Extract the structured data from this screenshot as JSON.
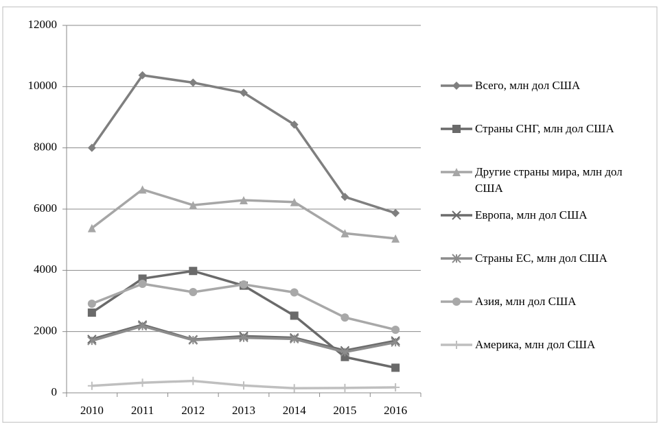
{
  "chart_data": {
    "type": "line",
    "categories": [
      "2010",
      "2011",
      "2012",
      "2013",
      "2014",
      "2015",
      "2016"
    ],
    "series": [
      {
        "name": "Всего, млн дол США",
        "color": "#7f7f7f",
        "marker": "diamond",
        "values": [
          8000,
          10370,
          10130,
          9800,
          8760,
          6400,
          5870
        ]
      },
      {
        "name": "Страны СНГ, млн дол США",
        "color": "#6a6a6a",
        "marker": "square",
        "values": [
          2620,
          3730,
          3980,
          3500,
          2520,
          1170,
          820
        ]
      },
      {
        "name": "Другие страны мира, млн дол США",
        "color": "#a6a6a6",
        "marker": "triangle",
        "values": [
          5380,
          6640,
          6130,
          6290,
          6230,
          5210,
          5040
        ]
      },
      {
        "name": "Европа, млн дол США",
        "color": "#6b6b6b",
        "marker": "x",
        "values": [
          1750,
          2220,
          1740,
          1850,
          1800,
          1380,
          1700
        ]
      },
      {
        "name": "Страны ЕС, млн дол США",
        "color": "#8c8c8c",
        "marker": "asterisk",
        "values": [
          1700,
          2180,
          1720,
          1800,
          1760,
          1330,
          1650
        ]
      },
      {
        "name": "Азия, млн дол США",
        "color": "#a8a8a8",
        "marker": "circle",
        "values": [
          2910,
          3560,
          3290,
          3540,
          3280,
          2460,
          2060
        ]
      },
      {
        "name": "Америка, млн дол США",
        "color": "#bfbfbf",
        "marker": "plus",
        "values": [
          230,
          330,
          390,
          240,
          150,
          160,
          180
        ]
      }
    ],
    "ylim": [
      0,
      12000
    ],
    "yticks": [
      0,
      2000,
      4000,
      6000,
      8000,
      10000,
      12000
    ],
    "grid": true,
    "legend": "right"
  }
}
